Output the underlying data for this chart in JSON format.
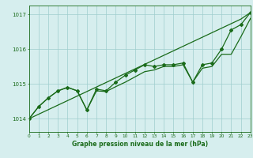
{
  "x": [
    0,
    1,
    2,
    3,
    4,
    5,
    6,
    7,
    8,
    9,
    10,
    11,
    12,
    13,
    14,
    15,
    16,
    17,
    18,
    19,
    20,
    21,
    22,
    23
  ],
  "y_main": [
    1014.0,
    1014.35,
    1014.6,
    1014.8,
    1014.9,
    1014.8,
    1014.25,
    1014.85,
    1014.8,
    1015.05,
    1015.25,
    1015.4,
    1015.55,
    1015.5,
    1015.55,
    1015.55,
    1015.6,
    1015.05,
    1015.55,
    1015.6,
    1016.0,
    1016.55,
    1016.7,
    1017.05
  ],
  "y_upper": [
    1014.0,
    1014.13,
    1014.26,
    1014.39,
    1014.52,
    1014.65,
    1014.78,
    1014.91,
    1015.04,
    1015.17,
    1015.3,
    1015.43,
    1015.56,
    1015.69,
    1015.82,
    1015.95,
    1016.08,
    1016.21,
    1016.34,
    1016.47,
    1016.6,
    1016.73,
    1016.86,
    1017.05
  ],
  "y_lower": [
    1014.0,
    1014.35,
    1014.6,
    1014.8,
    1014.9,
    1014.8,
    1014.25,
    1014.8,
    1014.78,
    1014.92,
    1015.05,
    1015.2,
    1015.35,
    1015.4,
    1015.5,
    1015.5,
    1015.55,
    1015.05,
    1015.45,
    1015.5,
    1015.85,
    1015.85,
    1016.35,
    1016.88
  ],
  "line_color": "#1a6b1a",
  "bg_color": "#d6eeee",
  "grid_color": "#9ecece",
  "xlabel": "Graphe pression niveau de la mer (hPa)",
  "yticks": [
    1014,
    1015,
    1016,
    1017
  ],
  "xlim": [
    0,
    23
  ],
  "ylim": [
    1013.62,
    1017.25
  ]
}
